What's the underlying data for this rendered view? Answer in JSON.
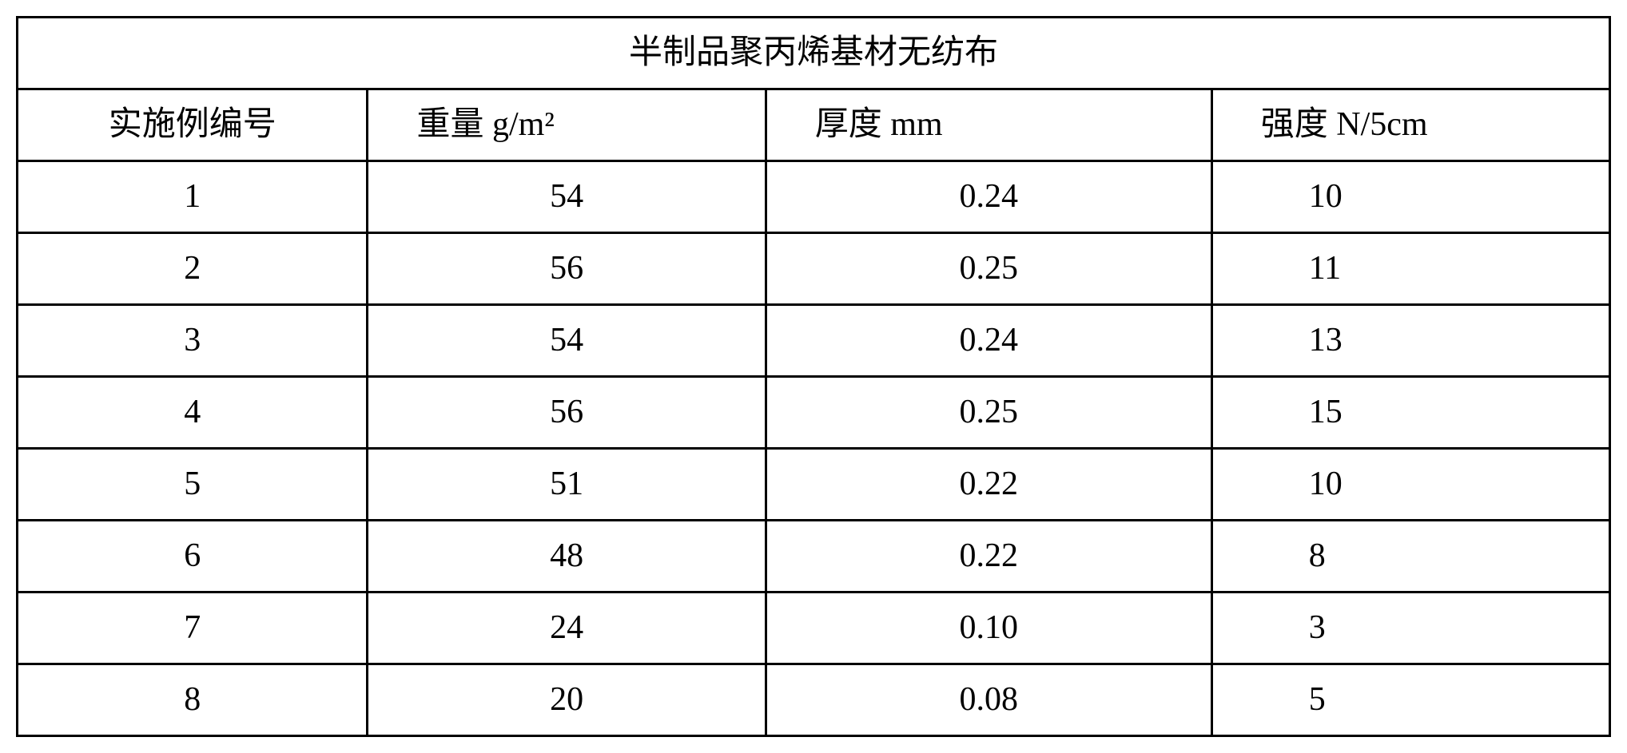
{
  "table": {
    "title": "半制品聚丙烯基材无纺布",
    "columns": [
      "实施例编号",
      "重量 g/m²",
      "厚度 mm",
      "强度 N/5cm"
    ],
    "rows": [
      [
        "1",
        "54",
        "0.24",
        "10"
      ],
      [
        "2",
        "56",
        "0.25",
        "11"
      ],
      [
        "3",
        "54",
        "0.24",
        "13"
      ],
      [
        "4",
        "56",
        "0.25",
        "15"
      ],
      [
        "5",
        "51",
        "0.22",
        "10"
      ],
      [
        "6",
        "48",
        "0.22",
        "8"
      ],
      [
        "7",
        "24",
        "0.10",
        "3"
      ],
      [
        "8",
        "20",
        "0.08",
        "5"
      ]
    ],
    "border_color": "#000000",
    "background_color": "#ffffff",
    "title_fontsize": 42,
    "header_fontsize": 42,
    "cell_fontsize": 42,
    "col_widths_pct": [
      22,
      25,
      28,
      25
    ]
  }
}
